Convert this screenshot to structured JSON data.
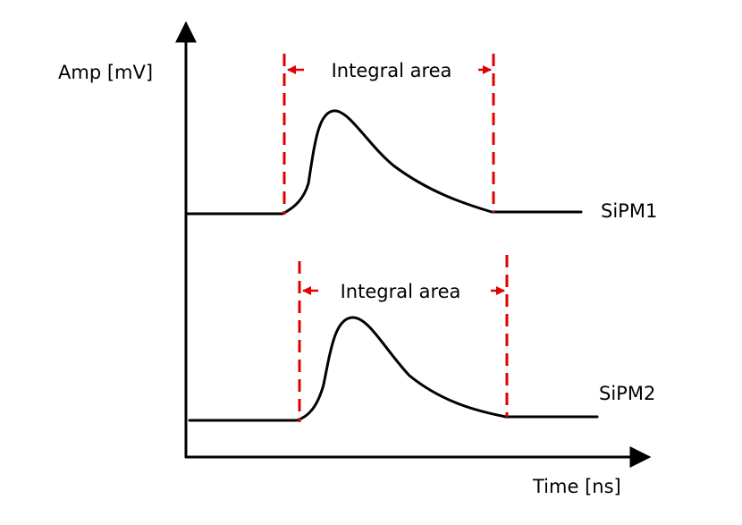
{
  "axes": {
    "y_label": "Amp [mV]",
    "x_label": "Time [ns]"
  },
  "signals": [
    {
      "label": "SiPM1",
      "window_label": "Integral area"
    },
    {
      "label": "SiPM2",
      "window_label": "Integral area"
    }
  ]
}
